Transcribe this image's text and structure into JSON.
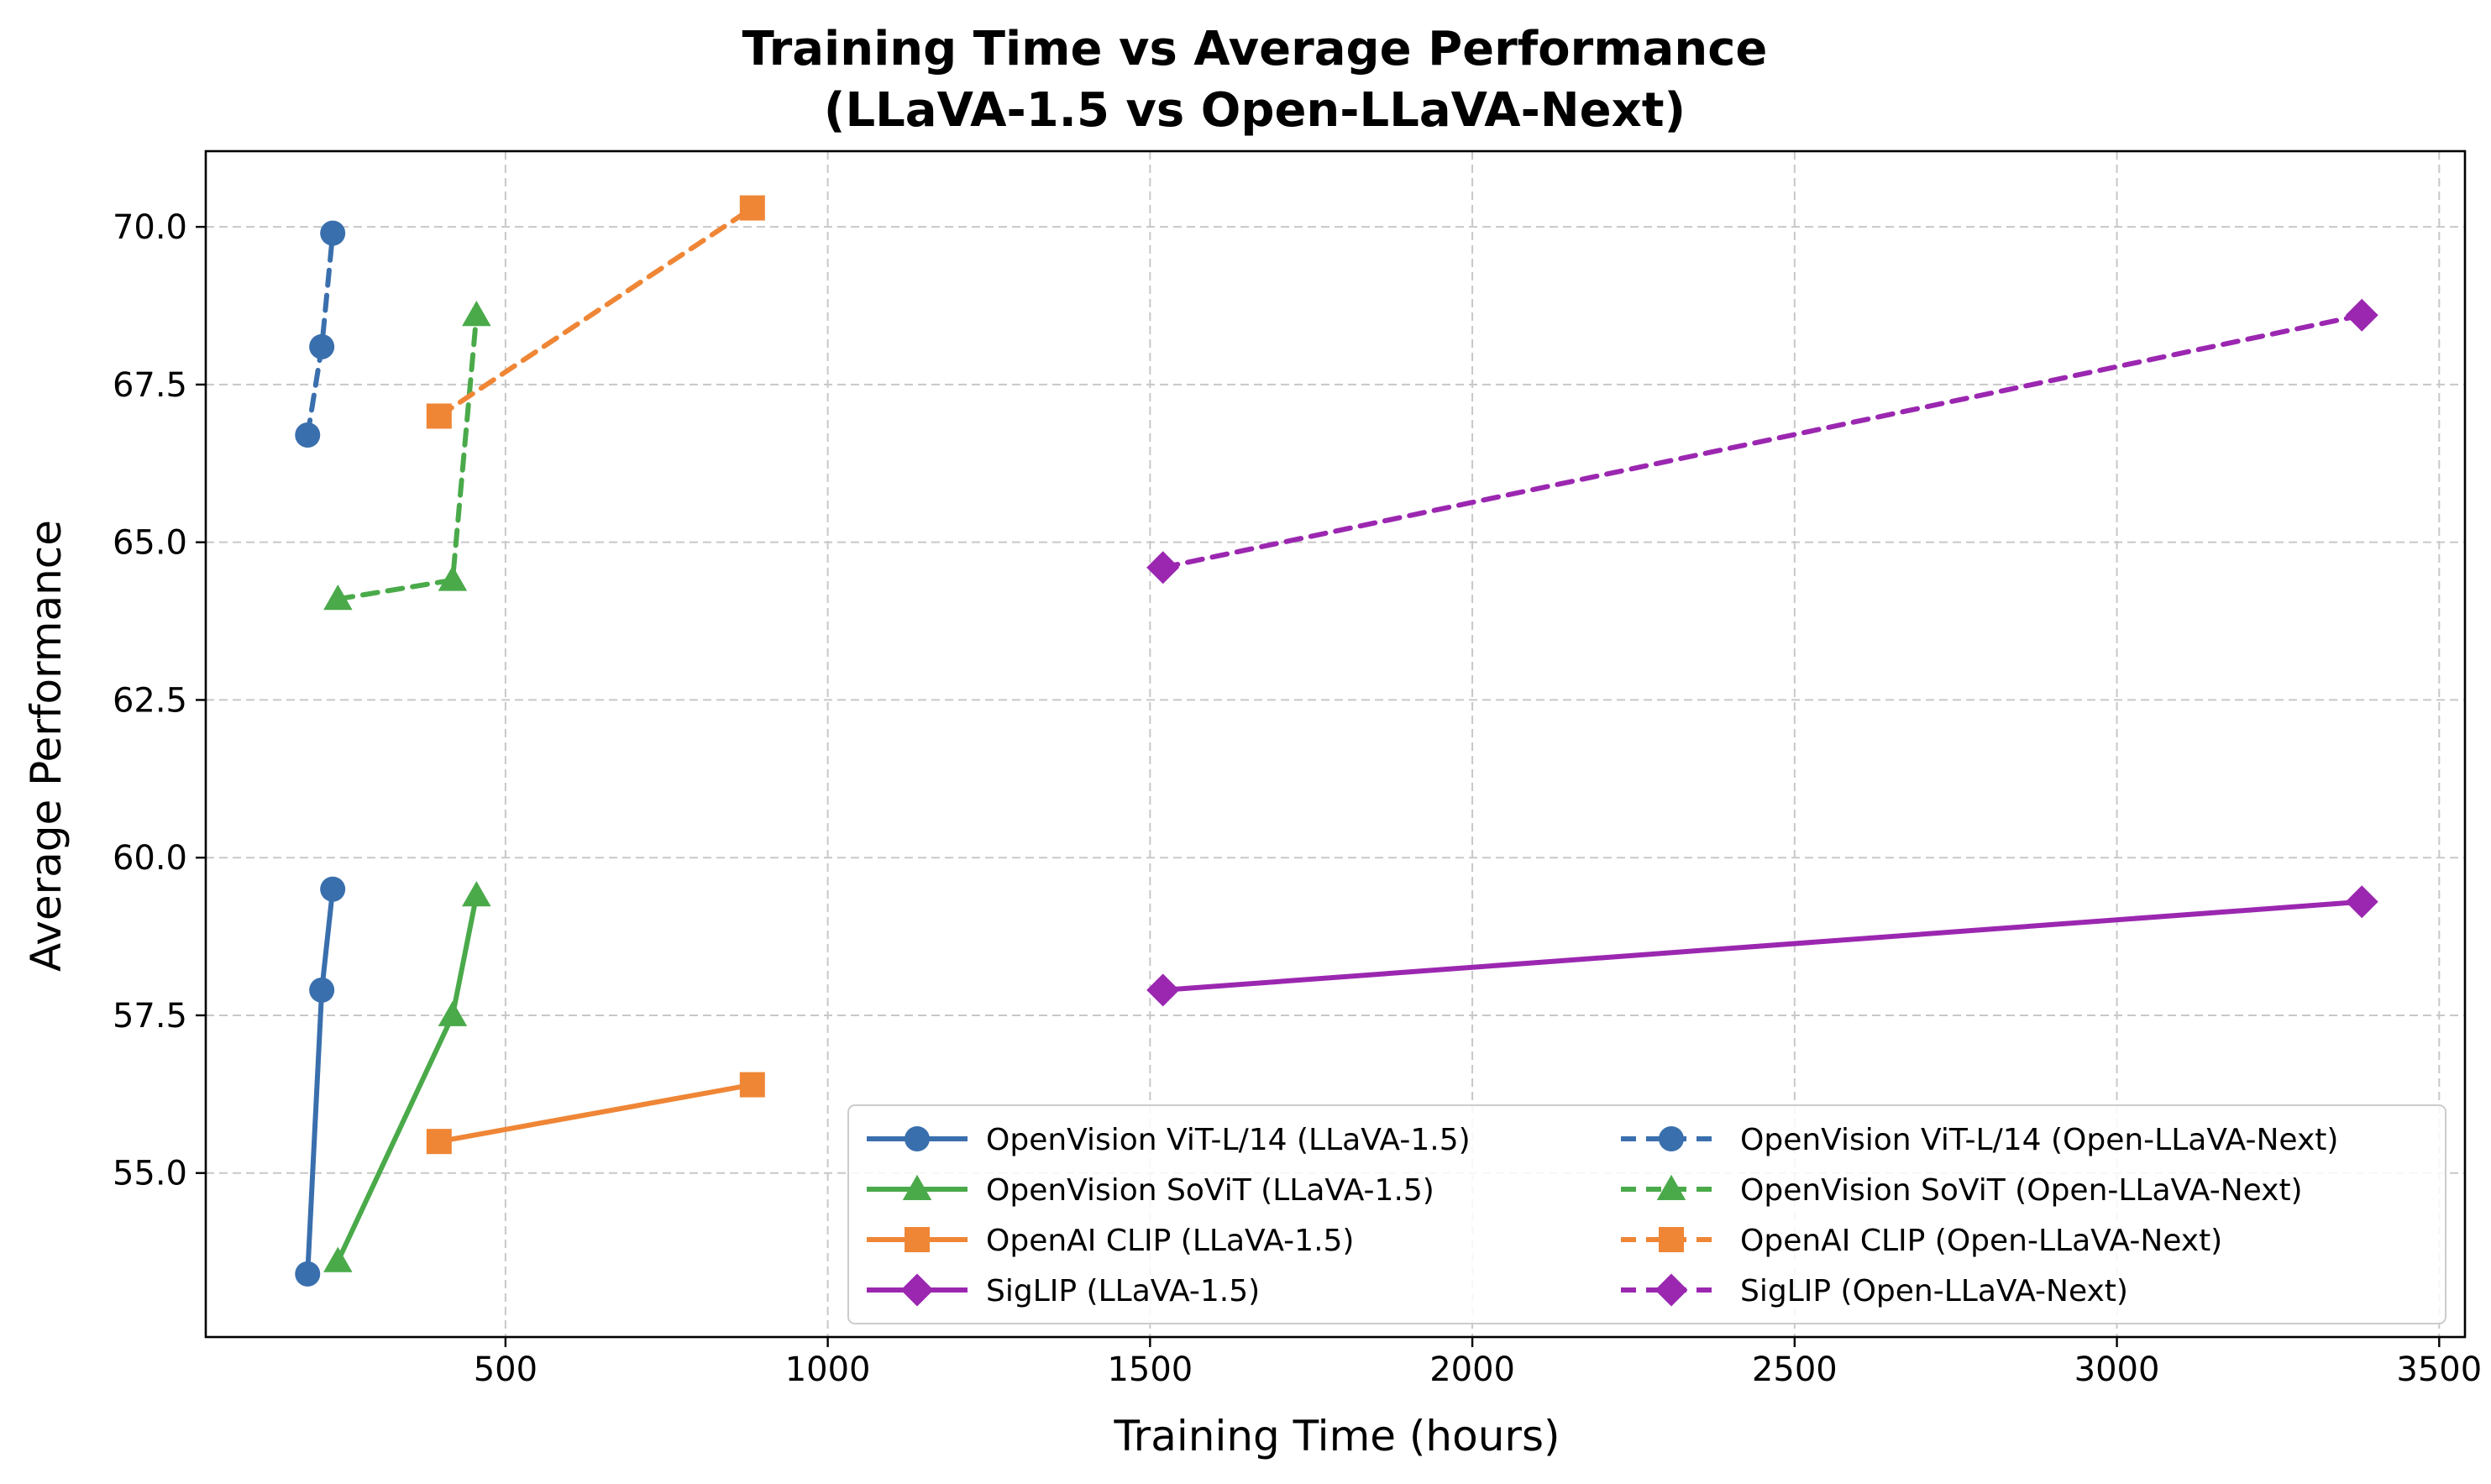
{
  "chart_data": {
    "type": "line",
    "title_line1": "Training Time vs Average Performance",
    "title_line2": "(LLaVA-1.5 vs Open-LLaVA-Next)",
    "xlabel": "Training Time (hours)",
    "ylabel": "Average Performance",
    "xlim": [
      35,
      3540
    ],
    "ylim": [
      52.4,
      71.2
    ],
    "xticks": [
      500,
      1000,
      1500,
      2000,
      2500,
      3000,
      3500
    ],
    "xtick_labels": [
      "500",
      "1000",
      "1500",
      "2000",
      "2500",
      "3000",
      "3500"
    ],
    "yticks": [
      55.0,
      57.5,
      60.0,
      62.5,
      65.0,
      67.5,
      70.0
    ],
    "ytick_labels": [
      "55.0",
      "57.5",
      "60.0",
      "62.5",
      "65.0",
      "67.5",
      "70.0"
    ],
    "grid": true,
    "legend_position": "lower-right",
    "legend_columns": 2,
    "series": [
      {
        "name": "OpenVision ViT-L/14 (LLaVA-1.5)",
        "color": "#3a6fad",
        "marker": "circle",
        "dash": "solid",
        "x": [
          193,
          215,
          232
        ],
        "y": [
          53.4,
          57.9,
          59.5
        ]
      },
      {
        "name": "OpenVision SoViT (LLaVA-1.5)",
        "color": "#4aaa4a",
        "marker": "triangle",
        "dash": "solid",
        "x": [
          240,
          418,
          455
        ],
        "y": [
          53.6,
          57.5,
          59.4
        ]
      },
      {
        "name": "OpenAI CLIP (LLaVA-1.5)",
        "color": "#ef8636",
        "marker": "square",
        "dash": "solid",
        "x": [
          397,
          883
        ],
        "y": [
          55.5,
          56.4
        ]
      },
      {
        "name": "SigLIP (LLaVA-1.5)",
        "color": "#9b27b0",
        "marker": "diamond",
        "dash": "solid",
        "x": [
          1520,
          3380
        ],
        "y": [
          57.9,
          59.3
        ]
      },
      {
        "name": "OpenVision ViT-L/14 (Open-LLaVA-Next)",
        "color": "#3a6fad",
        "marker": "circle",
        "dash": "dashed",
        "x": [
          193,
          215,
          232
        ],
        "y": [
          66.7,
          68.1,
          69.9
        ]
      },
      {
        "name": "OpenVision SoViT (Open-LLaVA-Next)",
        "color": "#4aaa4a",
        "marker": "triangle",
        "dash": "dashed",
        "x": [
          240,
          418,
          455
        ],
        "y": [
          64.1,
          64.4,
          68.6
        ]
      },
      {
        "name": "OpenAI CLIP (Open-LLaVA-Next)",
        "color": "#ef8636",
        "marker": "square",
        "dash": "dashed",
        "x": [
          397,
          883
        ],
        "y": [
          67.0,
          70.3
        ]
      },
      {
        "name": "SigLIP (Open-LLaVA-Next)",
        "color": "#9b27b0",
        "marker": "diamond",
        "dash": "dashed",
        "x": [
          1520,
          3380
        ],
        "y": [
          64.6,
          68.6
        ]
      }
    ]
  }
}
